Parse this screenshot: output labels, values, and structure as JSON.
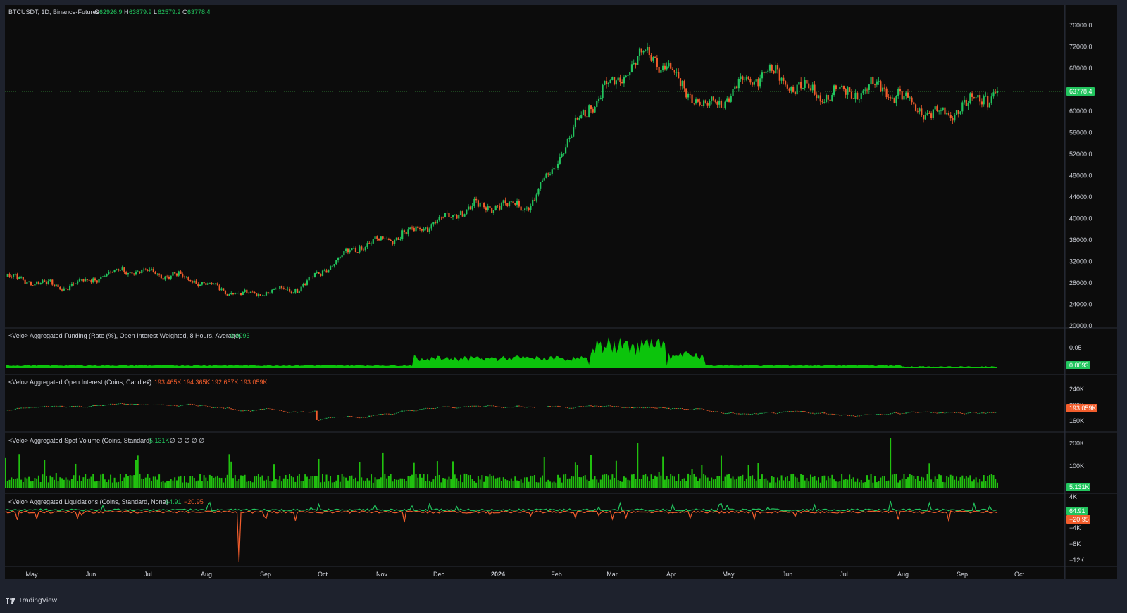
{
  "colors": {
    "background": "#0c0c0c",
    "frame": "#1e222d",
    "separator": "#2a2e39",
    "up": "#22c55e",
    "down": "#f25d2c",
    "volume": "#21c10f",
    "funding_fill": "#0cc40c",
    "text": "#d1d4dc",
    "muted": "#787b86",
    "price_line": "#2e7d32"
  },
  "header": {
    "symbol": "BTCUSDT, 1D, Binance-Futures",
    "o_label": "O",
    "o_value": "62926.9",
    "h_label": "H",
    "h_value": "63879.9",
    "l_label": "L",
    "l_value": "62579.2",
    "c_label": "C",
    "c_value": "63778.4"
  },
  "panes": {
    "funding": {
      "title": "<Velo> Aggregated Funding (Rate (%), Open Interest Weighted, 8 Hours, Average)",
      "value": "0.0093"
    },
    "oi": {
      "title": "<Velo> Aggregated Open Interest (Coins, Candles)",
      "icon": "∅",
      "o": "193.465K",
      "h": "194.365K",
      "l": "192.657K",
      "c": "193.059K"
    },
    "spot": {
      "title": "<Velo> Aggregated Spot Volume (Coins, Standard)",
      "value": "5.131K",
      "icons": "∅ ∅ ∅ ∅ ∅"
    },
    "liq": {
      "title": "<Velo> Aggregated Liquidations (Coins, Standard, None)",
      "long": "64.91",
      "short": "−20.95"
    }
  },
  "price_axis": [
    "76000.0",
    "72000.0",
    "68000.0",
    "64000.0",
    "60000.0",
    "56000.0",
    "52000.0",
    "48000.0",
    "44000.0",
    "40000.0",
    "36000.0",
    "32000.0",
    "28000.0",
    "24000.0",
    "20000.0"
  ],
  "price_badge": "63778.4",
  "funding_axis": [
    "0.05"
  ],
  "funding_badge": "0.0093",
  "oi_axis": [
    "240K",
    "200K",
    "160K"
  ],
  "oi_badge": "193.059K",
  "spot_axis": [
    "200K",
    "100K"
  ],
  "spot_badge": "5.131K",
  "liq_axis": [
    "4K",
    "−4K",
    "−8K",
    "−12K"
  ],
  "liq_badges": [
    "64.91",
    "−20.95"
  ],
  "time_axis": [
    "May",
    "Jun",
    "Jul",
    "Aug",
    "Sep",
    "Oct",
    "Nov",
    "Dec",
    "2024",
    "Feb",
    "Mar",
    "Apr",
    "May",
    "Jun",
    "Jul",
    "Aug",
    "Sep",
    "Oct"
  ],
  "footer": {
    "brand": "TradingView"
  },
  "chart_data": [
    {
      "type": "candlestick",
      "title": "BTCUSDT, 1D, Binance-Futures",
      "ylim": [
        20000,
        76000
      ],
      "x_ticks": [
        "May",
        "Jun",
        "Jul",
        "Aug",
        "Sep",
        "Oct",
        "Nov",
        "Dec",
        "2024",
        "Feb",
        "Mar",
        "Apr",
        "May",
        "Jun",
        "Jul",
        "Aug",
        "Sep",
        "Oct"
      ],
      "monthly_closes": [
        {
          "month": "Apr 2023",
          "close": 29200
        },
        {
          "month": "May 2023",
          "close": 27200
        },
        {
          "month": "Jun 2023",
          "close": 30400
        },
        {
          "month": "Jul 2023",
          "close": 29200
        },
        {
          "month": "Aug 2023",
          "close": 25900
        },
        {
          "month": "Sep 2023",
          "close": 26900
        },
        {
          "month": "Oct 2023",
          "close": 34500
        },
        {
          "month": "Nov 2023",
          "close": 37700
        },
        {
          "month": "Dec 2023",
          "close": 42300
        },
        {
          "month": "Jan 2024",
          "close": 42500
        },
        {
          "month": "Feb 2024",
          "close": 61100
        },
        {
          "month": "Mar 2024",
          "close": 71300
        },
        {
          "month": "Apr 2024",
          "close": 60600
        },
        {
          "month": "May 2024",
          "close": 67500
        },
        {
          "month": "Jun 2024",
          "close": 62700
        },
        {
          "month": "Jul 2024",
          "close": 64600
        },
        {
          "month": "Aug 2024",
          "close": 58900
        },
        {
          "month": "Sep 2024",
          "close": 63778.4
        }
      ],
      "last": {
        "open": 62926.9,
        "high": 63879.9,
        "low": 62579.2,
        "close": 63778.4
      }
    },
    {
      "type": "area",
      "title": "Aggregated Funding",
      "last": 0.0093,
      "axis_ticks": [
        0.05
      ]
    },
    {
      "type": "candlestick",
      "title": "Aggregated Open Interest",
      "axis_ticks": [
        "240K",
        "200K",
        "160K"
      ],
      "last": {
        "open": 193465,
        "high": 194365,
        "low": 192657,
        "close": 193059
      }
    },
    {
      "type": "bar",
      "title": "Aggregated Spot Volume",
      "axis_ticks": [
        "200K",
        "100K"
      ],
      "last": 5131
    },
    {
      "type": "line",
      "title": "Aggregated Liquidations",
      "series": [
        {
          "name": "long",
          "last": 64.91
        },
        {
          "name": "short",
          "last": -20.95
        }
      ],
      "axis_ticks": [
        "4K",
        "−4K",
        "−8K",
        "−12K"
      ]
    }
  ]
}
